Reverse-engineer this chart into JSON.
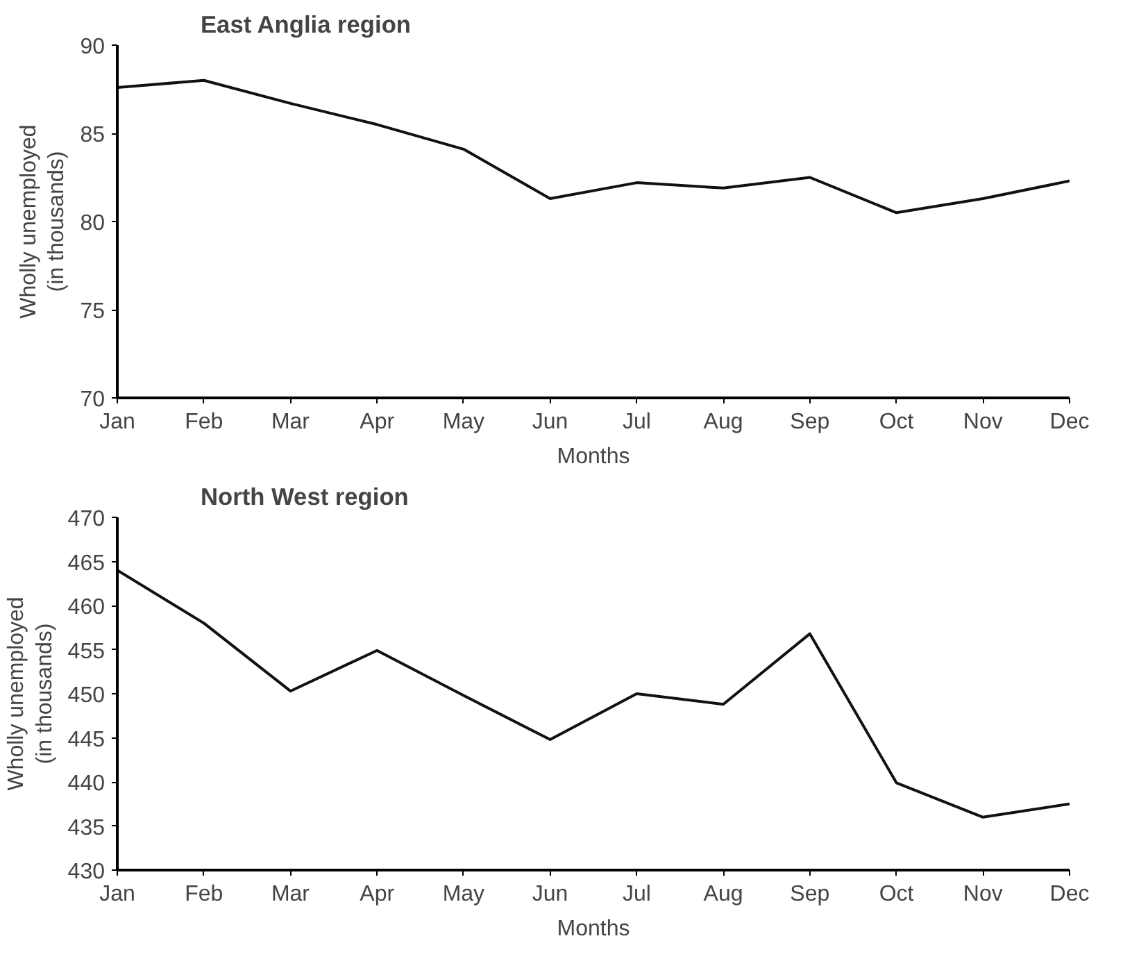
{
  "chart_data": [
    {
      "type": "line",
      "title": "East Anglia region",
      "xlabel": "Months",
      "ylabel": "Wholly unemployed\n(in thousands)",
      "categories": [
        "Jan",
        "Feb",
        "Mar",
        "Apr",
        "May",
        "Jun",
        "Jul",
        "Aug",
        "Sep",
        "Oct",
        "Nov",
        "Dec"
      ],
      "series": [
        {
          "color": "#111111",
          "values": [
            87.6,
            88.0,
            86.7,
            85.5,
            84.1,
            81.3,
            82.2,
            81.9,
            82.5,
            80.5,
            81.3,
            82.3
          ]
        }
      ],
      "ylim": [
        70,
        90
      ],
      "yticks": [
        70,
        75,
        80,
        85,
        90
      ],
      "line_style": "solid"
    },
    {
      "type": "line",
      "title": "North West region",
      "xlabel": "Months",
      "ylabel": "Wholly unemployed\n(in thousands)",
      "categories": [
        "Jan",
        "Feb",
        "Mar",
        "Apr",
        "May",
        "Jun",
        "Jul",
        "Aug",
        "Sep",
        "Oct",
        "Nov",
        "Dec"
      ],
      "series": [
        {
          "color": "#111111",
          "values": [
            464.0,
            458.0,
            450.3,
            454.9,
            449.8,
            444.8,
            450.0,
            448.8,
            456.8,
            439.9,
            436.0,
            437.5
          ]
        }
      ],
      "ylim": [
        430,
        470
      ],
      "yticks": [
        430,
        435,
        440,
        445,
        450,
        455,
        460,
        465,
        470
      ],
      "line_style": "solid"
    }
  ]
}
